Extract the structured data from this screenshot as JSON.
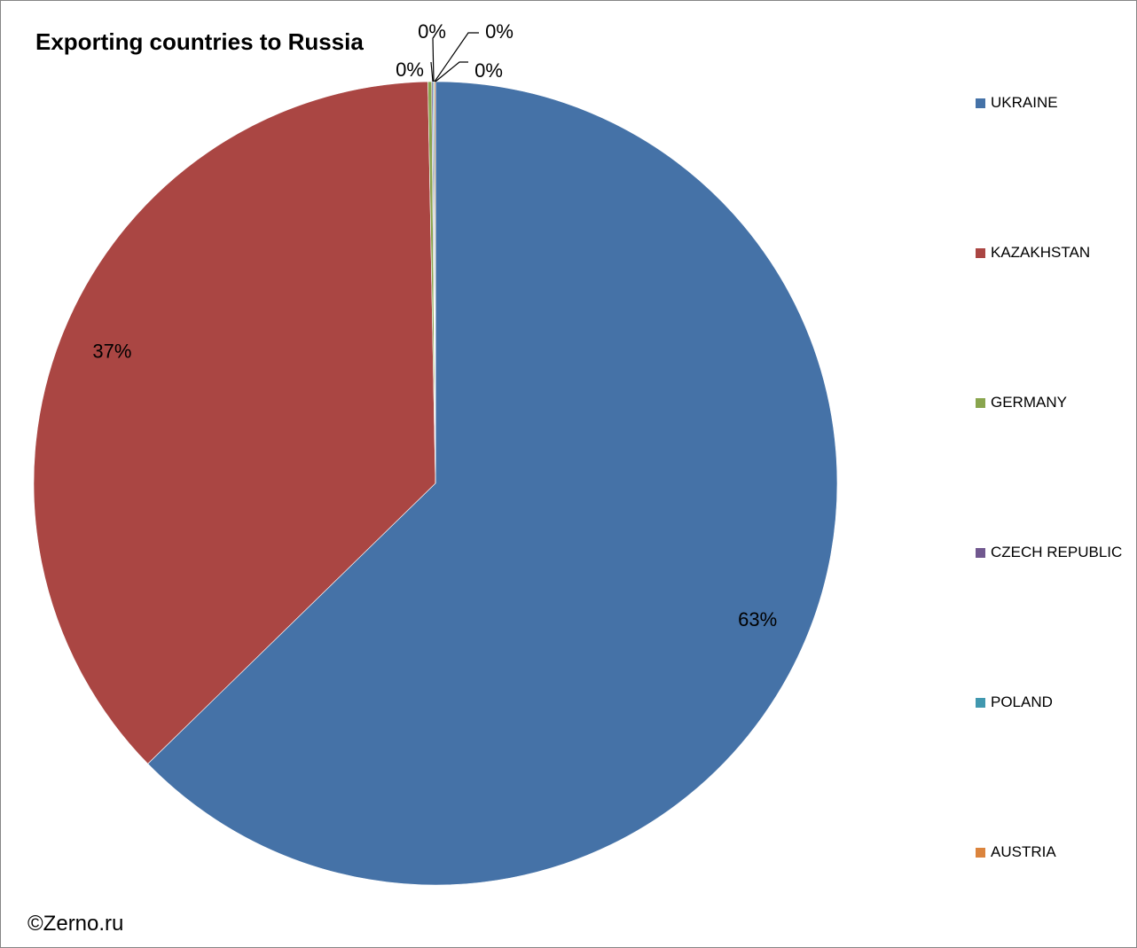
{
  "chart_data": {
    "type": "pie",
    "title": "Exporting countries to Russia",
    "categories": [
      "UKRAINE",
      "KAZAKHSTAN",
      "GERMANY",
      "CZECH REPUBLIC",
      "POLAND",
      "AUSTRIA"
    ],
    "values": [
      62.7,
      37.0,
      0.15,
      0.05,
      0.05,
      0.05
    ],
    "data_labels": [
      "63%",
      "37%",
      "0%",
      "0%",
      "0%",
      "0%"
    ],
    "colors": [
      "#4572A7",
      "#AA4643",
      "#89A54E",
      "#71588F",
      "#4198AF",
      "#DB843D"
    ],
    "legend_position": "right"
  },
  "credit": "©Zerno.ru"
}
